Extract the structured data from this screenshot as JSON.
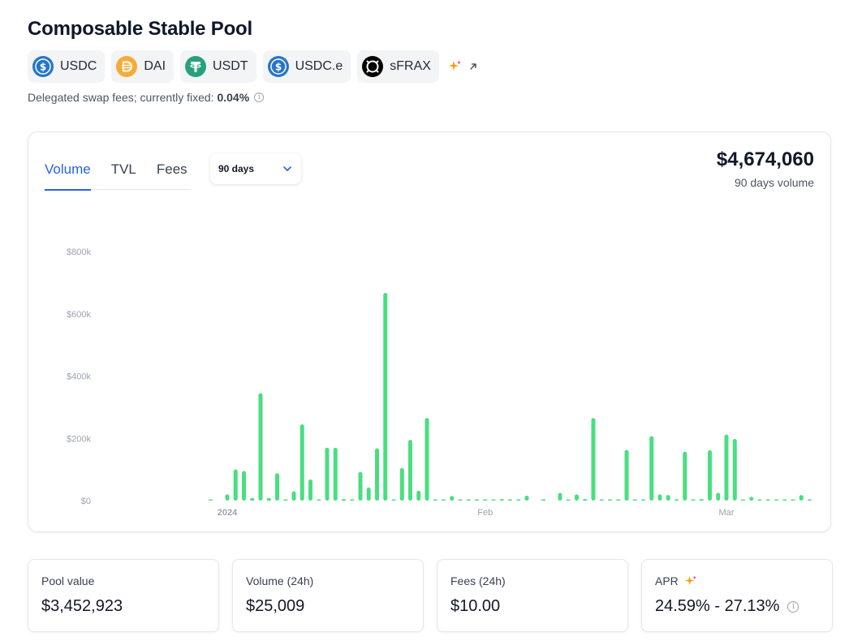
{
  "page": {
    "title": "Composable Stable Pool",
    "fee_text": "Delegated swap fees; currently fixed: ",
    "fee_value": "0.04%"
  },
  "tokens": [
    {
      "symbol": "USDC",
      "icon": "usdc-icon",
      "color": "#2775CA"
    },
    {
      "symbol": "DAI",
      "icon": "dai-icon",
      "color": "#F5AC37"
    },
    {
      "symbol": "USDT",
      "icon": "usdt-icon",
      "color": "#26A17B"
    },
    {
      "symbol": "USDC.e",
      "icon": "usdc-icon",
      "color": "#2775CA"
    },
    {
      "symbol": "sFRAX",
      "icon": "sfrax-icon",
      "color": "#000000"
    }
  ],
  "chart_panel": {
    "tabs": [
      "Volume",
      "TVL",
      "Fees"
    ],
    "active_tab": "Volume",
    "period_select": "90 days",
    "total_value": "$4,674,060",
    "total_label": "90 days volume"
  },
  "chart_data": {
    "type": "bar",
    "color": "#4ade80",
    "y_ticks": [
      "$0",
      "$200k",
      "$400k",
      "$600k",
      "$800k"
    ],
    "ylim": [
      0,
      800000
    ],
    "x_ticks": [
      {
        "label": "2024",
        "day": 2,
        "bold": true
      },
      {
        "label": "Feb",
        "day": 33,
        "bold": false
      },
      {
        "label": "Mar",
        "day": 62,
        "bold": false
      }
    ],
    "days": [
      0,
      2,
      3,
      4,
      5,
      6,
      7,
      8,
      9,
      10,
      11,
      12,
      13,
      14,
      15,
      16,
      17,
      18,
      19,
      20,
      21,
      22,
      23,
      24,
      25,
      26,
      27,
      28,
      29,
      30,
      31,
      32,
      33,
      34,
      35,
      36,
      37,
      38,
      40,
      42,
      43,
      44,
      45,
      46,
      47,
      48,
      49,
      50,
      51,
      52,
      53,
      54,
      55,
      56,
      57,
      58,
      59,
      60,
      61,
      62,
      63,
      64,
      65,
      66,
      67,
      68,
      69,
      70,
      71,
      72
    ],
    "values": [
      2000,
      20000,
      100000,
      95000,
      8000,
      345000,
      8000,
      88000,
      0,
      30000,
      245000,
      68000,
      3000,
      170000,
      170000,
      5000,
      0,
      92000,
      42000,
      168000,
      667000,
      0,
      105000,
      195000,
      32000,
      265000,
      3000,
      0,
      15000,
      0,
      3000,
      0,
      3000,
      0,
      5000,
      3000,
      0,
      16000,
      3000,
      25000,
      0,
      20000,
      5000,
      265000,
      3000,
      3000,
      3000,
      163000,
      3000,
      0,
      207000,
      20000,
      18000,
      0,
      157000,
      3000,
      5000,
      162000,
      25000,
      212000,
      198000,
      0,
      12000,
      3000,
      3000,
      3000,
      0,
      3000,
      18000,
      3000
    ]
  },
  "stats": [
    {
      "label": "Pool value",
      "value": "$3,452,923"
    },
    {
      "label": "Volume (24h)",
      "value": "$25,009"
    },
    {
      "label": "Fees (24h)",
      "value": "$10.00"
    },
    {
      "label": "APR",
      "value": "24.59% - 27.13%"
    }
  ]
}
